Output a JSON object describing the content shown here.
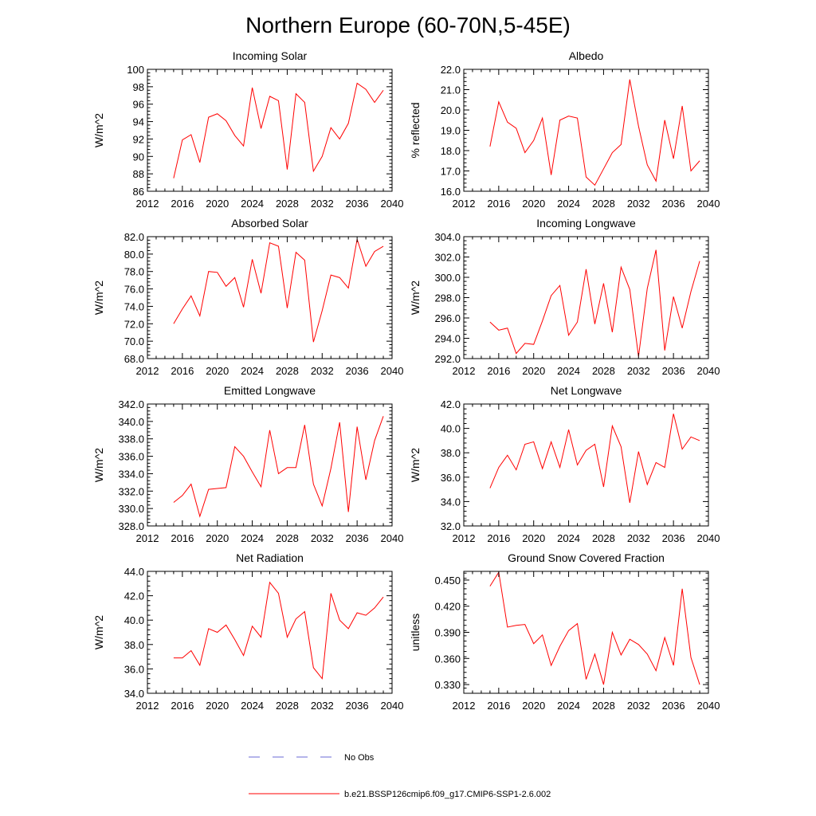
{
  "title": "Northern Europe (60-70N,5-45E)",
  "colors": {
    "model_line": "#ff0000",
    "obs_line": "#6b6bd6",
    "axis": "#000000"
  },
  "legend": {
    "obs_label": "No Obs",
    "model_label": "b.e21.BSSP126cmip6.f09_g17.CMIP6-SSP1-2.6.002"
  },
  "chart_data": [
    {
      "type": "line",
      "title": "Incoming Solar",
      "ylabel": "W/m^2",
      "xlim": [
        2012,
        2040
      ],
      "ylim": [
        86,
        100
      ],
      "xticks": [
        2012,
        2016,
        2020,
        2024,
        2028,
        2032,
        2036,
        2040
      ],
      "yticks": [
        86,
        88,
        90,
        92,
        94,
        96,
        98,
        100
      ],
      "ydecimals": 0,
      "x": [
        2015,
        2016,
        2017,
        2018,
        2019,
        2020,
        2021,
        2022,
        2023,
        2024,
        2025,
        2026,
        2027,
        2028,
        2029,
        2030,
        2031,
        2032,
        2033,
        2034,
        2035,
        2036,
        2037,
        2038,
        2039
      ],
      "series": [
        {
          "name": "b.e21.BSSP126cmip6.f09_g17.CMIP6-SSP1-2.6.002",
          "values": [
            87.5,
            91.9,
            92.5,
            89.3,
            94.5,
            94.9,
            94.1,
            92.4,
            91.2,
            97.9,
            93.2,
            96.9,
            96.4,
            88.5,
            97.2,
            96.2,
            88.3,
            90.0,
            93.3,
            92.0,
            93.8,
            98.4,
            97.7,
            96.2,
            97.6
          ]
        }
      ]
    },
    {
      "type": "line",
      "title": "Albedo",
      "ylabel": "% reflected",
      "xlim": [
        2012,
        2040
      ],
      "ylim": [
        16,
        22
      ],
      "xticks": [
        2012,
        2016,
        2020,
        2024,
        2028,
        2032,
        2036,
        2040
      ],
      "yticks": [
        16,
        17,
        18,
        19,
        20,
        21,
        22
      ],
      "ydecimals": 1,
      "x": [
        2015,
        2016,
        2017,
        2018,
        2019,
        2020,
        2021,
        2022,
        2023,
        2024,
        2025,
        2026,
        2027,
        2028,
        2029,
        2030,
        2031,
        2032,
        2033,
        2034,
        2035,
        2036,
        2037,
        2038,
        2039
      ],
      "series": [
        {
          "name": "b.e21.BSSP126cmip6.f09_g17.CMIP6-SSP1-2.6.002",
          "values": [
            18.2,
            20.4,
            19.4,
            19.1,
            17.9,
            18.5,
            19.6,
            16.8,
            19.5,
            19.7,
            19.6,
            16.7,
            16.3,
            17.1,
            17.9,
            18.3,
            21.5,
            19.2,
            17.3,
            16.5,
            19.5,
            17.6,
            20.2,
            17.0,
            17.5
          ]
        }
      ]
    },
    {
      "type": "line",
      "title": "Absorbed Solar",
      "ylabel": "W/m^2",
      "xlim": [
        2012,
        2040
      ],
      "ylim": [
        68,
        82
      ],
      "xticks": [
        2012,
        2016,
        2020,
        2024,
        2028,
        2032,
        2036,
        2040
      ],
      "yticks": [
        68,
        70,
        72,
        74,
        76,
        78,
        80,
        82
      ],
      "ydecimals": 1,
      "x": [
        2015,
        2016,
        2017,
        2018,
        2019,
        2020,
        2021,
        2022,
        2023,
        2024,
        2025,
        2026,
        2027,
        2028,
        2029,
        2030,
        2031,
        2032,
        2033,
        2034,
        2035,
        2036,
        2037,
        2038,
        2039
      ],
      "series": [
        {
          "name": "b.e21.BSSP126cmip6.f09_g17.CMIP6-SSP1-2.6.002",
          "values": [
            72.0,
            73.7,
            75.2,
            72.9,
            78.0,
            77.9,
            76.3,
            77.3,
            73.9,
            79.4,
            75.5,
            81.3,
            80.9,
            73.8,
            80.2,
            79.3,
            69.9,
            73.5,
            77.6,
            77.3,
            76.1,
            81.7,
            78.6,
            80.3,
            80.9
          ]
        }
      ]
    },
    {
      "type": "line",
      "title": "Incoming Longwave",
      "ylabel": "W/m^2",
      "xlim": [
        2012,
        2040
      ],
      "ylim": [
        292,
        304
      ],
      "xticks": [
        2012,
        2016,
        2020,
        2024,
        2028,
        2032,
        2036,
        2040
      ],
      "yticks": [
        292,
        294,
        296,
        298,
        300,
        302,
        304
      ],
      "ydecimals": 1,
      "x": [
        2015,
        2016,
        2017,
        2018,
        2019,
        2020,
        2021,
        2022,
        2023,
        2024,
        2025,
        2026,
        2027,
        2028,
        2029,
        2030,
        2031,
        2032,
        2033,
        2034,
        2035,
        2036,
        2037,
        2038,
        2039
      ],
      "series": [
        {
          "name": "b.e21.BSSP126cmip6.f09_g17.CMIP6-SSP1-2.6.002",
          "values": [
            295.6,
            294.8,
            295.0,
            292.5,
            293.5,
            293.4,
            295.7,
            298.2,
            299.2,
            294.3,
            295.6,
            300.8,
            295.4,
            299.4,
            294.6,
            301.0,
            298.8,
            292.2,
            298.9,
            302.7,
            292.8,
            298.1,
            295.0,
            298.6,
            301.6
          ]
        }
      ]
    },
    {
      "type": "line",
      "title": "Emitted Longwave",
      "ylabel": "W/m^2",
      "xlim": [
        2012,
        2040
      ],
      "ylim": [
        328,
        342
      ],
      "xticks": [
        2012,
        2016,
        2020,
        2024,
        2028,
        2032,
        2036,
        2040
      ],
      "yticks": [
        328,
        330,
        332,
        334,
        336,
        338,
        340,
        342
      ],
      "ydecimals": 1,
      "x": [
        2015,
        2016,
        2017,
        2018,
        2019,
        2020,
        2021,
        2022,
        2023,
        2024,
        2025,
        2026,
        2027,
        2028,
        2029,
        2030,
        2031,
        2032,
        2033,
        2034,
        2035,
        2036,
        2037,
        2038,
        2039
      ],
      "series": [
        {
          "name": "b.e21.BSSP126cmip6.f09_g17.CMIP6-SSP1-2.6.002",
          "values": [
            330.7,
            331.5,
            332.8,
            329.1,
            332.2,
            332.3,
            332.4,
            337.1,
            336.0,
            334.2,
            332.5,
            339.0,
            334.0,
            334.7,
            334.7,
            339.6,
            332.8,
            330.3,
            334.6,
            339.9,
            329.6,
            339.4,
            333.3,
            337.8,
            340.6
          ]
        }
      ]
    },
    {
      "type": "line",
      "title": "Net Longwave",
      "ylabel": "W/m^2",
      "xlim": [
        2012,
        2040
      ],
      "ylim": [
        32,
        42
      ],
      "xticks": [
        2012,
        2016,
        2020,
        2024,
        2028,
        2032,
        2036,
        2040
      ],
      "yticks": [
        32,
        34,
        36,
        38,
        40,
        42
      ],
      "ydecimals": 1,
      "x": [
        2015,
        2016,
        2017,
        2018,
        2019,
        2020,
        2021,
        2022,
        2023,
        2024,
        2025,
        2026,
        2027,
        2028,
        2029,
        2030,
        2031,
        2032,
        2033,
        2034,
        2035,
        2036,
        2037,
        2038,
        2039
      ],
      "series": [
        {
          "name": "b.e21.BSSP126cmip6.f09_g17.CMIP6-SSP1-2.6.002",
          "values": [
            35.1,
            36.8,
            37.8,
            36.6,
            38.7,
            38.9,
            36.7,
            38.9,
            36.8,
            39.9,
            37.0,
            38.2,
            38.7,
            35.2,
            40.2,
            38.5,
            33.9,
            38.1,
            35.4,
            37.2,
            36.8,
            41.2,
            38.3,
            39.3,
            39.0
          ]
        }
      ]
    },
    {
      "type": "line",
      "title": "Net Radiation",
      "ylabel": "W/m^2",
      "xlim": [
        2012,
        2040
      ],
      "ylim": [
        34,
        44
      ],
      "xticks": [
        2012,
        2016,
        2020,
        2024,
        2028,
        2032,
        2036,
        2040
      ],
      "yticks": [
        34,
        36,
        38,
        40,
        42,
        44
      ],
      "ydecimals": 1,
      "x": [
        2015,
        2016,
        2017,
        2018,
        2019,
        2020,
        2021,
        2022,
        2023,
        2024,
        2025,
        2026,
        2027,
        2028,
        2029,
        2030,
        2031,
        2032,
        2033,
        2034,
        2035,
        2036,
        2037,
        2038,
        2039
      ],
      "series": [
        {
          "name": "b.e21.BSSP126cmip6.f09_g17.CMIP6-SSP1-2.6.002",
          "values": [
            36.9,
            36.9,
            37.5,
            36.3,
            39.3,
            39.0,
            39.6,
            38.4,
            37.1,
            39.5,
            38.6,
            43.1,
            42.2,
            38.6,
            40.1,
            40.7,
            36.1,
            35.2,
            42.2,
            40.0,
            39.3,
            40.6,
            40.4,
            41.0,
            41.9
          ]
        }
      ]
    },
    {
      "type": "line",
      "title": "Ground Snow Covered Fraction",
      "ylabel": "unitless",
      "xlim": [
        2012,
        2040
      ],
      "ylim": [
        0.32,
        0.46
      ],
      "xticks": [
        2012,
        2016,
        2020,
        2024,
        2028,
        2032,
        2036,
        2040
      ],
      "yticks": [
        0.33,
        0.36,
        0.39,
        0.42,
        0.45
      ],
      "ydecimals": 3,
      "x": [
        2015,
        2016,
        2017,
        2018,
        2019,
        2020,
        2021,
        2022,
        2023,
        2024,
        2025,
        2026,
        2027,
        2028,
        2029,
        2030,
        2031,
        2032,
        2033,
        2034,
        2035,
        2036,
        2037,
        2038,
        2039
      ],
      "series": [
        {
          "name": "b.e21.BSSP126cmip6.f09_g17.CMIP6-SSP1-2.6.002",
          "values": [
            0.443,
            0.459,
            0.396,
            0.398,
            0.399,
            0.377,
            0.387,
            0.352,
            0.374,
            0.392,
            0.4,
            0.336,
            0.365,
            0.33,
            0.39,
            0.364,
            0.382,
            0.376,
            0.365,
            0.346,
            0.384,
            0.352,
            0.44,
            0.361,
            0.33
          ]
        }
      ]
    }
  ]
}
